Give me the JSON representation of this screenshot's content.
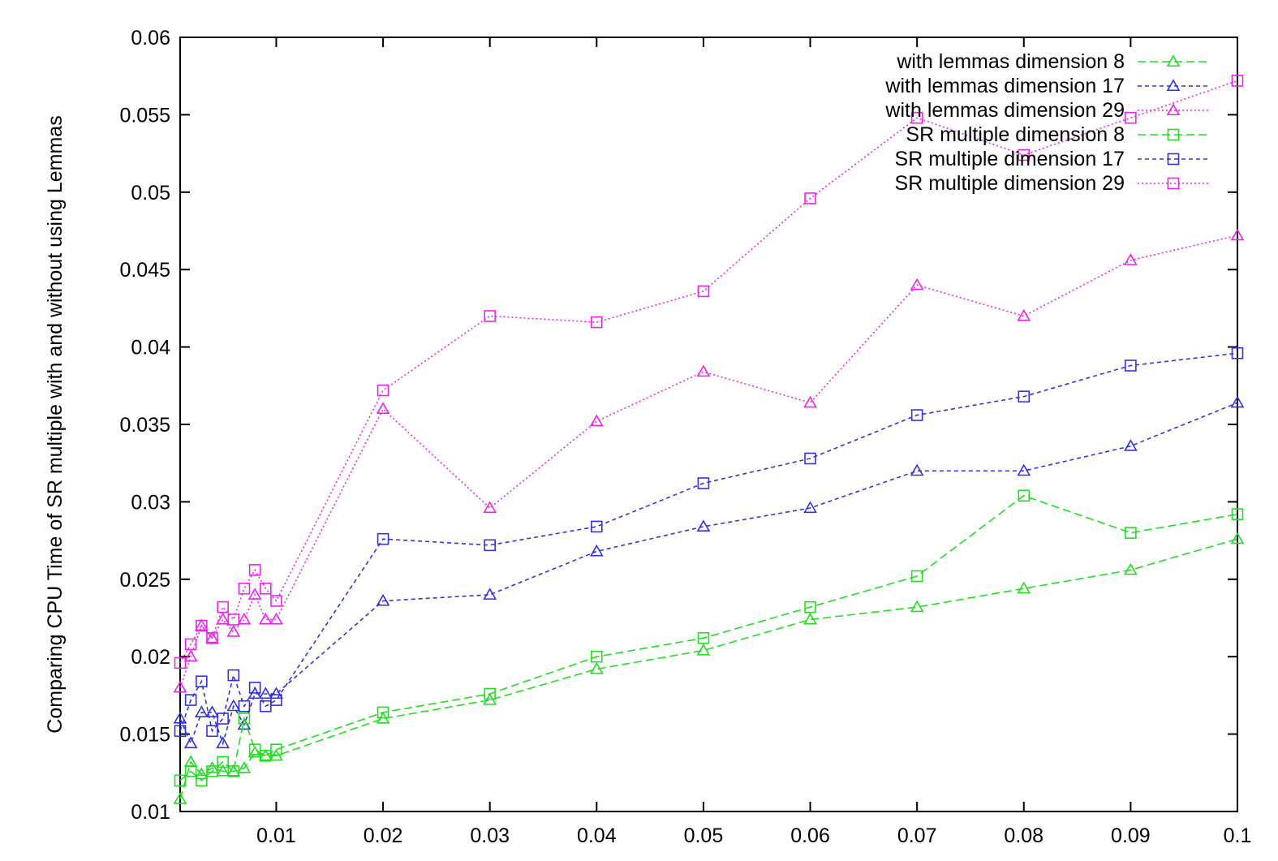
{
  "chart_data": {
    "type": "line",
    "title": "",
    "xlabel": "",
    "ylabel": "Comparing CPU Time of SR multiple with and without using Lemmas",
    "xlim": [
      0.001,
      0.1
    ],
    "ylim": [
      0.01,
      0.06
    ],
    "x_ticks": [
      {
        "value": 0.01,
        "label": "0.01"
      },
      {
        "value": 0.02,
        "label": "0.02"
      },
      {
        "value": 0.03,
        "label": "0.03"
      },
      {
        "value": 0.04,
        "label": "0.04"
      },
      {
        "value": 0.05,
        "label": "0.05"
      },
      {
        "value": 0.06,
        "label": "0.06"
      },
      {
        "value": 0.07,
        "label": "0.07"
      },
      {
        "value": 0.08,
        "label": "0.08"
      },
      {
        "value": 0.09,
        "label": "0.09"
      },
      {
        "value": 0.1,
        "label": "0.1"
      }
    ],
    "y_ticks": [
      {
        "value": 0.01,
        "label": "0.01"
      },
      {
        "value": 0.015,
        "label": "0.015"
      },
      {
        "value": 0.02,
        "label": "0.02"
      },
      {
        "value": 0.025,
        "label": "0.025"
      },
      {
        "value": 0.03,
        "label": "0.03"
      },
      {
        "value": 0.035,
        "label": "0.035"
      },
      {
        "value": 0.04,
        "label": "0.04"
      },
      {
        "value": 0.045,
        "label": "0.045"
      },
      {
        "value": 0.05,
        "label": "0.05"
      },
      {
        "value": 0.055,
        "label": "0.055"
      },
      {
        "value": 0.06,
        "label": "0.06"
      }
    ],
    "grid": false,
    "legend_position": "top-right",
    "x": [
      0.001,
      0.002,
      0.003,
      0.004,
      0.005,
      0.006,
      0.007,
      0.008,
      0.009,
      0.01,
      0.02,
      0.03,
      0.04,
      0.05,
      0.06,
      0.07,
      0.08,
      0.09,
      0.1
    ],
    "series": [
      {
        "name": "with lemmas dimension 8",
        "color": "#22dd22",
        "marker": "triangle",
        "dash": "dashed",
        "values": [
          0.0108,
          0.0132,
          0.0124,
          0.0128,
          0.0126,
          0.0126,
          0.0128,
          0.0138,
          0.0136,
          0.0136,
          0.016,
          0.0172,
          0.0192,
          0.0204,
          0.0224,
          0.0232,
          0.0244,
          0.0256,
          0.0276
        ]
      },
      {
        "name": "with lemmas dimension 17",
        "color": "#3333dd",
        "marker": "triangle",
        "dash": "dense-dashed",
        "values": [
          0.016,
          0.0144,
          0.0164,
          0.0164,
          0.0144,
          0.0168,
          0.0156,
          0.0176,
          0.0176,
          0.0176,
          0.0236,
          0.024,
          0.0268,
          0.0284,
          0.0296,
          0.032,
          0.032,
          0.0336,
          0.0364
        ]
      },
      {
        "name": "with lemmas dimension 29",
        "color": "#ee22ee",
        "marker": "triangle",
        "dash": "dotted",
        "values": [
          0.018,
          0.02,
          0.022,
          0.0212,
          0.0224,
          0.0216,
          0.0224,
          0.024,
          0.0224,
          0.0224,
          0.036,
          0.0296,
          0.0352,
          0.0384,
          0.0364,
          0.044,
          0.042,
          0.0456,
          0.0472
        ]
      },
      {
        "name": "SR multiple dimension 8",
        "color": "#22dd22",
        "marker": "square",
        "dash": "dashed",
        "values": [
          0.012,
          0.0126,
          0.012,
          0.0126,
          0.0132,
          0.0126,
          0.016,
          0.014,
          0.0136,
          0.014,
          0.0164,
          0.0176,
          0.02,
          0.0212,
          0.0232,
          0.0252,
          0.0304,
          0.028,
          0.0292
        ]
      },
      {
        "name": "SR multiple dimension 17",
        "color": "#3333dd",
        "marker": "square",
        "dash": "dense-dashed",
        "values": [
          0.0152,
          0.0172,
          0.0184,
          0.0152,
          0.016,
          0.0188,
          0.0168,
          0.018,
          0.0168,
          0.0172,
          0.0276,
          0.0272,
          0.0284,
          0.0312,
          0.0328,
          0.0356,
          0.0368,
          0.0388,
          0.0396
        ]
      },
      {
        "name": "SR multiple dimension 29",
        "color": "#ee22ee",
        "marker": "square",
        "dash": "dotted",
        "values": [
          0.0196,
          0.0208,
          0.022,
          0.0212,
          0.0232,
          0.0224,
          0.0244,
          0.0256,
          0.0244,
          0.0236,
          0.0372,
          0.042,
          0.0416,
          0.0436,
          0.0496,
          0.0548,
          0.0524,
          0.0548,
          0.0572
        ]
      }
    ]
  }
}
